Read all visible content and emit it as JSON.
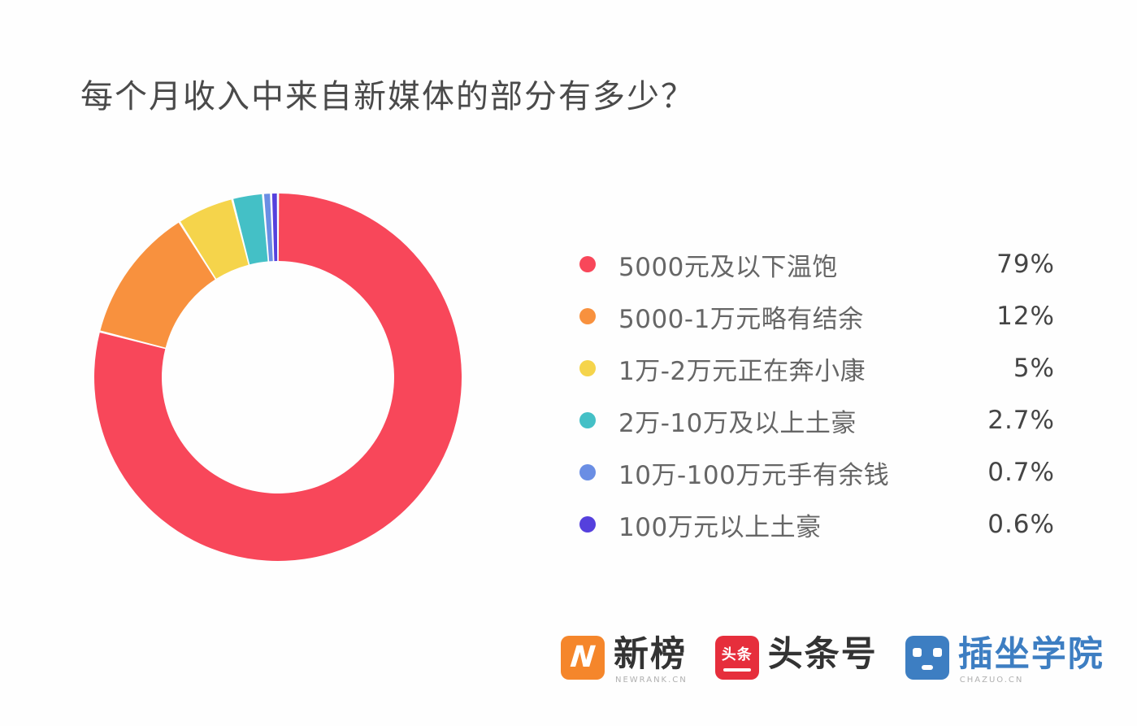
{
  "title": "每个月收入中来自新媒体的部分有多少？",
  "chart_data": {
    "type": "pie",
    "subtype": "donut",
    "title": "每个月收入中来自新媒体的部分有多少？",
    "start_angle_deg": 0,
    "direction": "clockwise",
    "categories": [
      "5000元及以下温饱",
      "5000-1万元略有结余",
      "1万-2万元正在奔小康",
      "2万-10万及以上土豪",
      "10万-100万元手有余钱",
      "100万元以上土豪"
    ],
    "values": [
      79,
      12,
      5,
      2.7,
      0.7,
      0.6
    ],
    "value_labels": [
      "79%",
      "12%",
      "5%",
      "2.7%",
      "0.7%",
      "0.6%"
    ],
    "colors": [
      "#F8475A",
      "#F8913E",
      "#F5D44B",
      "#44C0C6",
      "#6A8EE4",
      "#5540DD"
    ],
    "legend_position": "right",
    "grid": false
  },
  "legend": {
    "items": [
      {
        "label": "5000元及以下温饱",
        "value": "79%",
        "color": "#F8475A"
      },
      {
        "label": "5000-1万元略有结余",
        "value": "12%",
        "color": "#F8913E"
      },
      {
        "label": "1万-2万元正在奔小康",
        "value": "5%",
        "color": "#F5D44B"
      },
      {
        "label": "2万-10万及以上土豪",
        "value": "2.7%",
        "color": "#44C0C6"
      },
      {
        "label": "10万-100万元手有余钱",
        "value": "0.7%",
        "color": "#6A8EE4"
      },
      {
        "label": "100万元以上土豪",
        "value": "0.6%",
        "color": "#5540DD"
      }
    ]
  },
  "footer": {
    "logos": [
      {
        "brand_text": "新榜",
        "subtext": "NEWRANK.CN",
        "color": "#F5862B",
        "icon_glyph": "N"
      },
      {
        "brand_text": "头条号",
        "icon_text": "头条",
        "color": "#E62E3C"
      },
      {
        "brand_text": "插坐学院",
        "subtext": "CHAZUO.CN",
        "color": "#3D7EC2",
        "text_color": "#3D7EC2"
      }
    ]
  }
}
